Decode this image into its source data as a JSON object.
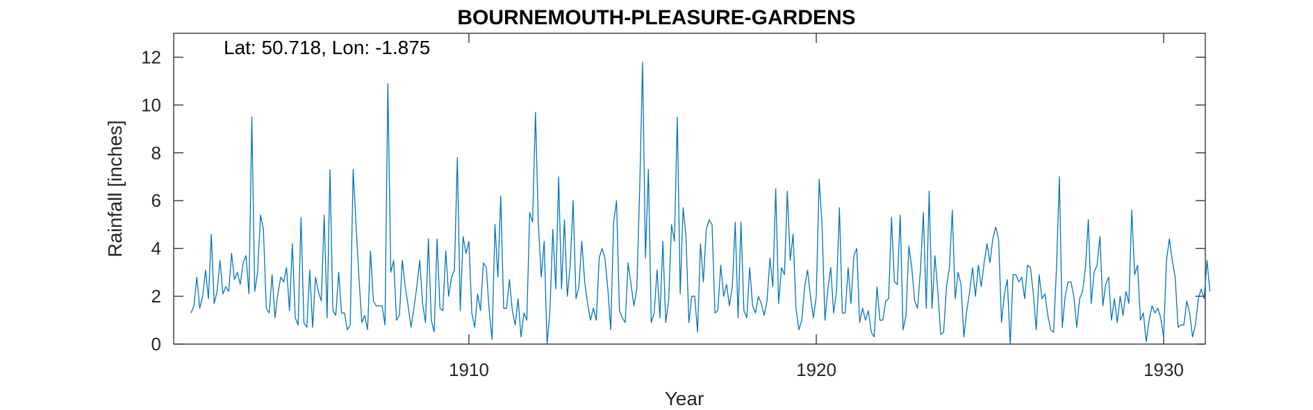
{
  "chart_data": {
    "type": "line",
    "title": "BOURNEMOUTH-PLEASURE-GARDENS",
    "xlabel": "Year",
    "ylabel": "Rainfall [inches]",
    "annotation": "Lat: 50.718, Lon: -1.875",
    "xlim": [
      1901.5,
      1931.2
    ],
    "ylim": [
      0,
      13
    ],
    "xticks": [
      1910,
      1920,
      1930
    ],
    "yticks": [
      0,
      2,
      4,
      6,
      8,
      10,
      12
    ],
    "grid": false,
    "series": [
      {
        "color": "#0072bd",
        "x_start": 1902.0,
        "x_step": 0.08333,
        "values": [
          1.3,
          1.6,
          2.8,
          1.5,
          2.0,
          3.1,
          1.9,
          4.6,
          1.7,
          2.2,
          3.5,
          2.1,
          2.4,
          2.2,
          3.8,
          2.7,
          3.0,
          2.5,
          3.4,
          3.7,
          2.1,
          9.5,
          2.2,
          3.0,
          5.4,
          4.8,
          1.5,
          1.3,
          2.9,
          1.1,
          2.1,
          2.8,
          2.6,
          3.2,
          1.4,
          4.2,
          1.1,
          0.8,
          5.3,
          0.9,
          0.7,
          3.1,
          0.7,
          2.8,
          2.2,
          1.8,
          5.4,
          1.1,
          7.3,
          1.4,
          1.2,
          3.0,
          1.3,
          1.3,
          0.6,
          0.8,
          7.3,
          5.0,
          2.8,
          0.9,
          1.2,
          0.6,
          3.9,
          1.8,
          1.6,
          1.6,
          1.6,
          0.8,
          10.9,
          3.0,
          3.5,
          1.0,
          1.2,
          3.5,
          2.4,
          1.6,
          0.7,
          1.5,
          2.4,
          3.5,
          1.7,
          0.9,
          4.4,
          1.0,
          0.5,
          4.4,
          1.5,
          1.4,
          3.9,
          2.0,
          2.8,
          3.1,
          7.8,
          1.4,
          4.5,
          3.8,
          4.3,
          1.3,
          0.7,
          2.1,
          1.4,
          3.4,
          3.2,
          1.4,
          0.2,
          5.0,
          2.8,
          6.2,
          1.5,
          1.5,
          2.7,
          1.4,
          0.8,
          1.9,
          0.3,
          1.3,
          1.0,
          5.5,
          5.1,
          9.7,
          5.0,
          2.8,
          4.3,
          0.0,
          1.4,
          4.8,
          2.3,
          7.0,
          2.3,
          5.2,
          2.0,
          3.3,
          6.0,
          1.9,
          2.4,
          4.3,
          2.6,
          1.7,
          1.0,
          1.5,
          1.0,
          3.6,
          4.0,
          3.6,
          2.3,
          0.6,
          5.1,
          6.0,
          1.4,
          1.1,
          0.9,
          3.4,
          2.5,
          1.6,
          2.3,
          6.5,
          11.8,
          3.6,
          7.3,
          0.9,
          1.3,
          3.1,
          1.1,
          4.3,
          0.9,
          1.8,
          5.0,
          4.3,
          9.5,
          2.1,
          5.7,
          4.5,
          0.9,
          2.0,
          2.0,
          0.5,
          4.2,
          2.6,
          4.8,
          5.2,
          5.0,
          1.3,
          1.4,
          3.3,
          2.0,
          2.5,
          1.6,
          2.4,
          5.1,
          1.1,
          5.1,
          1.4,
          1.1,
          3.2,
          1.6,
          1.3,
          2.0,
          1.7,
          1.2,
          1.8,
          3.6,
          2.4,
          6.5,
          1.7,
          3.2,
          2.9,
          6.4,
          3.5,
          4.6,
          1.5,
          0.6,
          1.0,
          2.4,
          3.1,
          2.0,
          1.1,
          2.0,
          6.9,
          5.0,
          1.0,
          2.3,
          3.2,
          1.3,
          2.2,
          5.7,
          1.3,
          1.3,
          3.2,
          1.7,
          3.7,
          4.0,
          0.9,
          1.5,
          1.0,
          1.4,
          0.5,
          0.3,
          2.4,
          1.0,
          1.0,
          1.8,
          1.9,
          5.3,
          2.6,
          2.5,
          5.4,
          0.6,
          1.2,
          4.1,
          3.2,
          1.8,
          1.5,
          3.1,
          5.5,
          1.5,
          6.4,
          1.5,
          3.7,
          2.2,
          0.4,
          0.5,
          2.4,
          3.2,
          5.6,
          1.9,
          3.0,
          2.5,
          0.3,
          1.4,
          2.2,
          3.2,
          2.0,
          3.3,
          2.4,
          3.4,
          4.2,
          3.4,
          4.4,
          4.9,
          4.4,
          0.9,
          2.1,
          2.7,
          0.0,
          2.9,
          2.9,
          2.6,
          2.8,
          1.9,
          3.3,
          3.2,
          2.1,
          0.6,
          2.9,
          1.9,
          2.1,
          1.2,
          0.6,
          0.5,
          3.2,
          7.0,
          0.7,
          2.0,
          2.6,
          2.6,
          2.0,
          0.7,
          1.9,
          2.2,
          3.2,
          5.2,
          1.7,
          3.0,
          3.3,
          4.5,
          1.6,
          2.5,
          2.8,
          1.0,
          1.9,
          0.9,
          2.0,
          1.2,
          2.2,
          1.7,
          5.6,
          2.9,
          3.3,
          1.0,
          1.3,
          0.1,
          1.0,
          1.6,
          1.3,
          1.5,
          1.1,
          0.3,
          3.5,
          4.4,
          3.5,
          2.8,
          0.7,
          0.8,
          0.8,
          1.8,
          1.3,
          0.3,
          0.8,
          1.9,
          2.3,
          1.9,
          3.5,
          2.2
        ]
      }
    ]
  }
}
